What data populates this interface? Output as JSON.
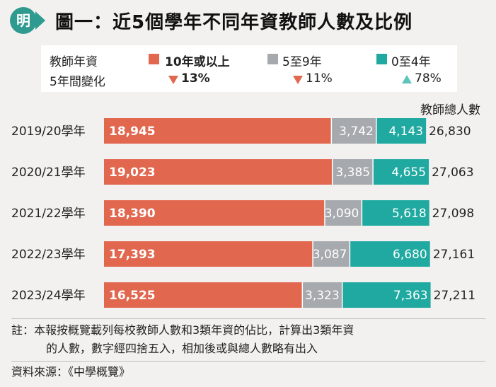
{
  "header": {
    "logo_char": "明",
    "title": "圖一：近5個學年不同年資教師人數及比例"
  },
  "legend": {
    "row1_label": "教師年資",
    "row2_label": "5年間變化",
    "items": [
      {
        "label": "10年或以上",
        "color": "#e2674f",
        "change": "13%",
        "direction": "down"
      },
      {
        "label": "5至9年",
        "color": "#a6a9ad",
        "change": "11%",
        "direction": "down"
      },
      {
        "label": "0至4年",
        "color": "#1fa9a0",
        "change": "78%",
        "direction": "up"
      }
    ]
  },
  "total_header": "教師總人數",
  "chart_data": {
    "type": "bar",
    "orientation": "horizontal",
    "stacked": true,
    "categories": [
      "2019/20學年",
      "2020/21學年",
      "2021/22學年",
      "2022/23學年",
      "2023/24學年"
    ],
    "series": [
      {
        "name": "10年或以上",
        "color": "#e2674f",
        "values": [
          18945,
          19023,
          18390,
          17393,
          16525
        ],
        "labels": [
          "18,945",
          "19,023",
          "18,390",
          "17,393",
          "16,525"
        ]
      },
      {
        "name": "5至9年",
        "color": "#a6a9ad",
        "values": [
          3742,
          3385,
          3090,
          3087,
          3323
        ],
        "labels": [
          "3,742",
          "3,385",
          "3,090",
          "3,087",
          "3,323"
        ]
      },
      {
        "name": "0至4年",
        "color": "#1fa9a0",
        "values": [
          4143,
          4655,
          5618,
          6680,
          7363
        ],
        "labels": [
          "4,143",
          "4,655",
          "5,618",
          "6,680",
          "7,363"
        ]
      }
    ],
    "totals": [
      26830,
      27063,
      27098,
      27161,
      27211
    ],
    "total_labels": [
      "26,830",
      "27,063",
      "27,098",
      "27,161",
      "27,211"
    ]
  },
  "footer": {
    "note_line1": "註：本報按概覽載列每校教師人數和3類年資的佔比，計算出3類年資",
    "note_line2": "的人數，數字經四捨五入，相加後或與總人數略有出入",
    "source": "資料來源：《中學概覽》"
  }
}
